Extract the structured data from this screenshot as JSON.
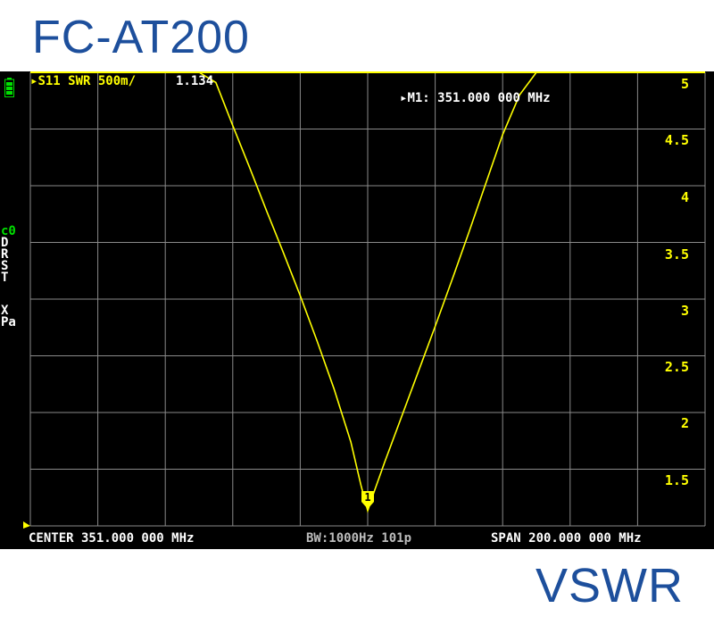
{
  "caption": {
    "model": "FC-AT200",
    "mode": "VSWR"
  },
  "header": {
    "trace_label": "S11 SWR 500m/",
    "trace_value": "1.134",
    "marker_readout": "M1: 351.000 000 MHz"
  },
  "sidebar": {
    "letters": [
      "c0",
      "D",
      "R",
      "S",
      "T",
      "X",
      "Pa"
    ]
  },
  "scale": {
    "labels": [
      "5",
      "4.5",
      "4",
      "3.5",
      "3",
      "2.5",
      "2",
      "1.5"
    ]
  },
  "marker": {
    "number": "1"
  },
  "status": {
    "center": "CENTER  351.000 000 MHz",
    "bw": "BW:1000Hz 101p",
    "span": "SPAN  200.000 000 MHz"
  },
  "chart_data": {
    "type": "line",
    "x_range": [
      251,
      451
    ],
    "y_range": [
      1,
      5
    ],
    "series": [
      {
        "x": [
          251,
          301,
          306,
          311,
          316,
          321,
          326,
          331,
          336,
          341,
          346,
          349,
          351,
          353,
          356,
          361,
          366,
          371,
          376,
          381,
          386,
          391,
          396,
          401,
          451
        ],
        "y": [
          5,
          5,
          4.91,
          4.53,
          4.16,
          3.78,
          3.41,
          3.03,
          2.63,
          2.21,
          1.74,
          1.36,
          1.134,
          1.31,
          1.56,
          1.96,
          2.36,
          2.76,
          3.17,
          3.59,
          4.02,
          4.45,
          4.8,
          5,
          5
        ]
      }
    ],
    "marker": {
      "x": 351,
      "y": 1.134,
      "label": "1"
    },
    "grid": true,
    "colors": {
      "trace": "#ffff00",
      "grid": "#8a8a8a",
      "marker": "#ffff00"
    }
  }
}
